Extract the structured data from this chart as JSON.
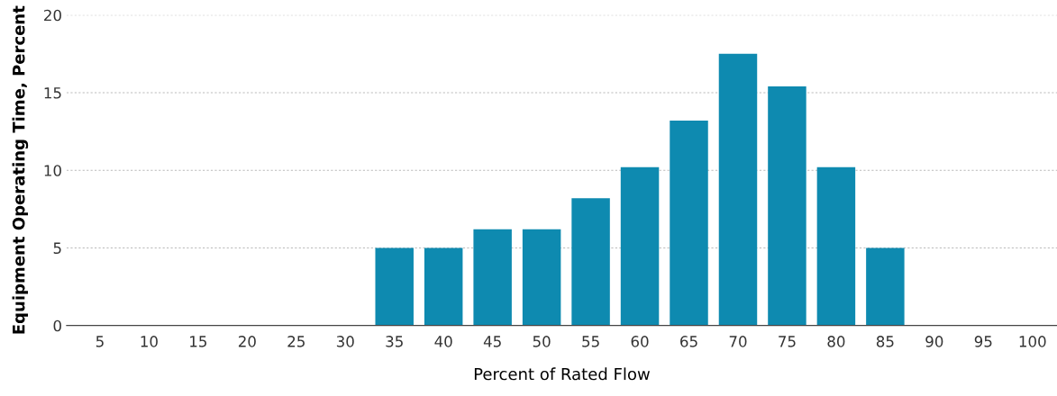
{
  "chart_data": {
    "type": "bar",
    "xlabel": "Percent of Rated Flow",
    "ylabel": "Equipment Operating Time, Percent",
    "categories": [
      "5",
      "10",
      "15",
      "20",
      "25",
      "30",
      "35",
      "40",
      "45",
      "50",
      "55",
      "60",
      "65",
      "70",
      "75",
      "80",
      "85",
      "90",
      "95",
      "100"
    ],
    "values": [
      0,
      0,
      0,
      0,
      0,
      0,
      5,
      5,
      6.2,
      6.2,
      8.2,
      10.2,
      13.2,
      17.5,
      15.4,
      10.2,
      5,
      0,
      0,
      0
    ],
    "color": "#0e8ab0",
    "ylim": [
      0,
      20
    ],
    "yticks": [
      0,
      5,
      10,
      15,
      20
    ],
    "grid": "y"
  }
}
